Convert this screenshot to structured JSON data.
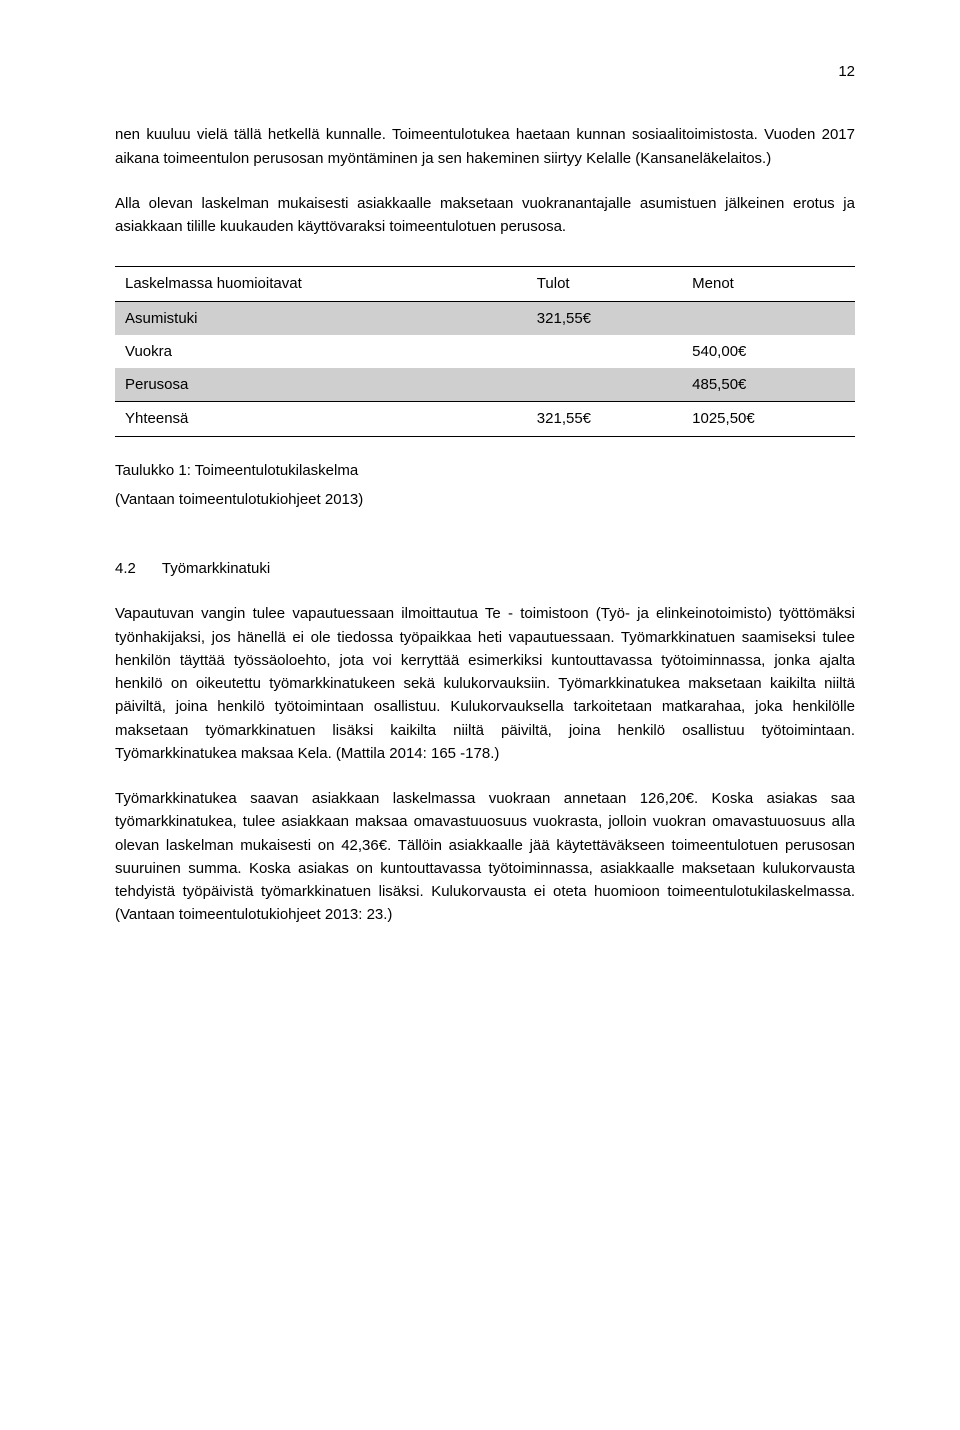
{
  "pageNumber": "12",
  "para1": "nen kuuluu vielä tällä hetkellä kunnalle. Toimeentulotukea haetaan kunnan sosiaalitoimistosta. Vuoden 2017 aikana toimeentulon perusosan myöntäminen ja sen hakeminen siirtyy Kelalle (Kansaneläkelaitos.)",
  "para2": "Alla olevan laskelman mukaisesti asiakkaalle maksetaan vuokranantajalle asumistuen jälkeinen erotus ja asiakkaan tilille kuukauden käyttövaraksi toimeentulotuen perusosa.",
  "table": {
    "headers": {
      "c1": "Laskelmassa huomioitavat",
      "c2": "Tulot",
      "c3": "Menot"
    },
    "rows": [
      {
        "label": "Asumistuki",
        "tulot": "321,55€",
        "menot": "",
        "shade": true
      },
      {
        "label": "Vuokra",
        "tulot": "",
        "menot": "540,00€",
        "shade": false
      },
      {
        "label": "Perusosa",
        "tulot": "",
        "menot": "485,50€",
        "shade": true
      }
    ],
    "footer": {
      "label": "Yhteensä",
      "tulot": "321,55€",
      "menot": "1025,50€"
    }
  },
  "caption1": "Taulukko 1: Toimeentulotukilaskelma",
  "caption2": "(Vantaan toimeentulotukiohjeet 2013)",
  "section": {
    "num": "4.2",
    "title": "Työmarkkinatuki"
  },
  "para3": "Vapautuvan vangin tulee vapautuessaan ilmoittautua Te - toimistoon (Työ- ja elinkeinotoimisto) työttömäksi työnhakijaksi, jos hänellä ei ole tiedossa työpaikkaa heti vapautuessaan. Työmarkkinatuen saamiseksi tulee henkilön täyttää työssäoloehto, jota voi kerryttää esimerkiksi kuntouttavassa työtoiminnassa, jonka ajalta henkilö on oikeutettu työmarkkinatukeen sekä kulukorvauksiin. Työmarkkinatukea maksetaan kaikilta niiltä päiviltä, joina henkilö työtoimintaan osallistuu. Kulukorvauksella tarkoitetaan matkarahaa, joka henkilölle maksetaan työmarkkinatuen lisäksi kaikilta niiltä päiviltä, joina henkilö osallistuu työtoimintaan. Työmarkkinatukea maksaa Kela. (Mattila 2014: 165 -178.)",
  "para4": "Työmarkkinatukea saavan asiakkaan laskelmassa vuokraan annetaan 126,20€. Koska asiakas saa työmarkkinatukea, tulee asiakkaan maksaa omavastuuosuus vuokrasta, jolloin vuokran omavastuuosuus alla olevan laskelman mukaisesti on 42,36€. Tällöin asiakkaalle jää käytettäväkseen toimeentulotuen perusosan suuruinen summa. Koska asiakas on kuntouttavassa työtoiminnassa, asiakkaalle maksetaan kulukorvausta tehdyistä työpäivistä työmarkkinatuen lisäksi. Kulukorvausta ei oteta huomioon toimeentulotukilaskelmassa. (Vantaan toimeentulotukiohjeet 2013: 23.)"
}
